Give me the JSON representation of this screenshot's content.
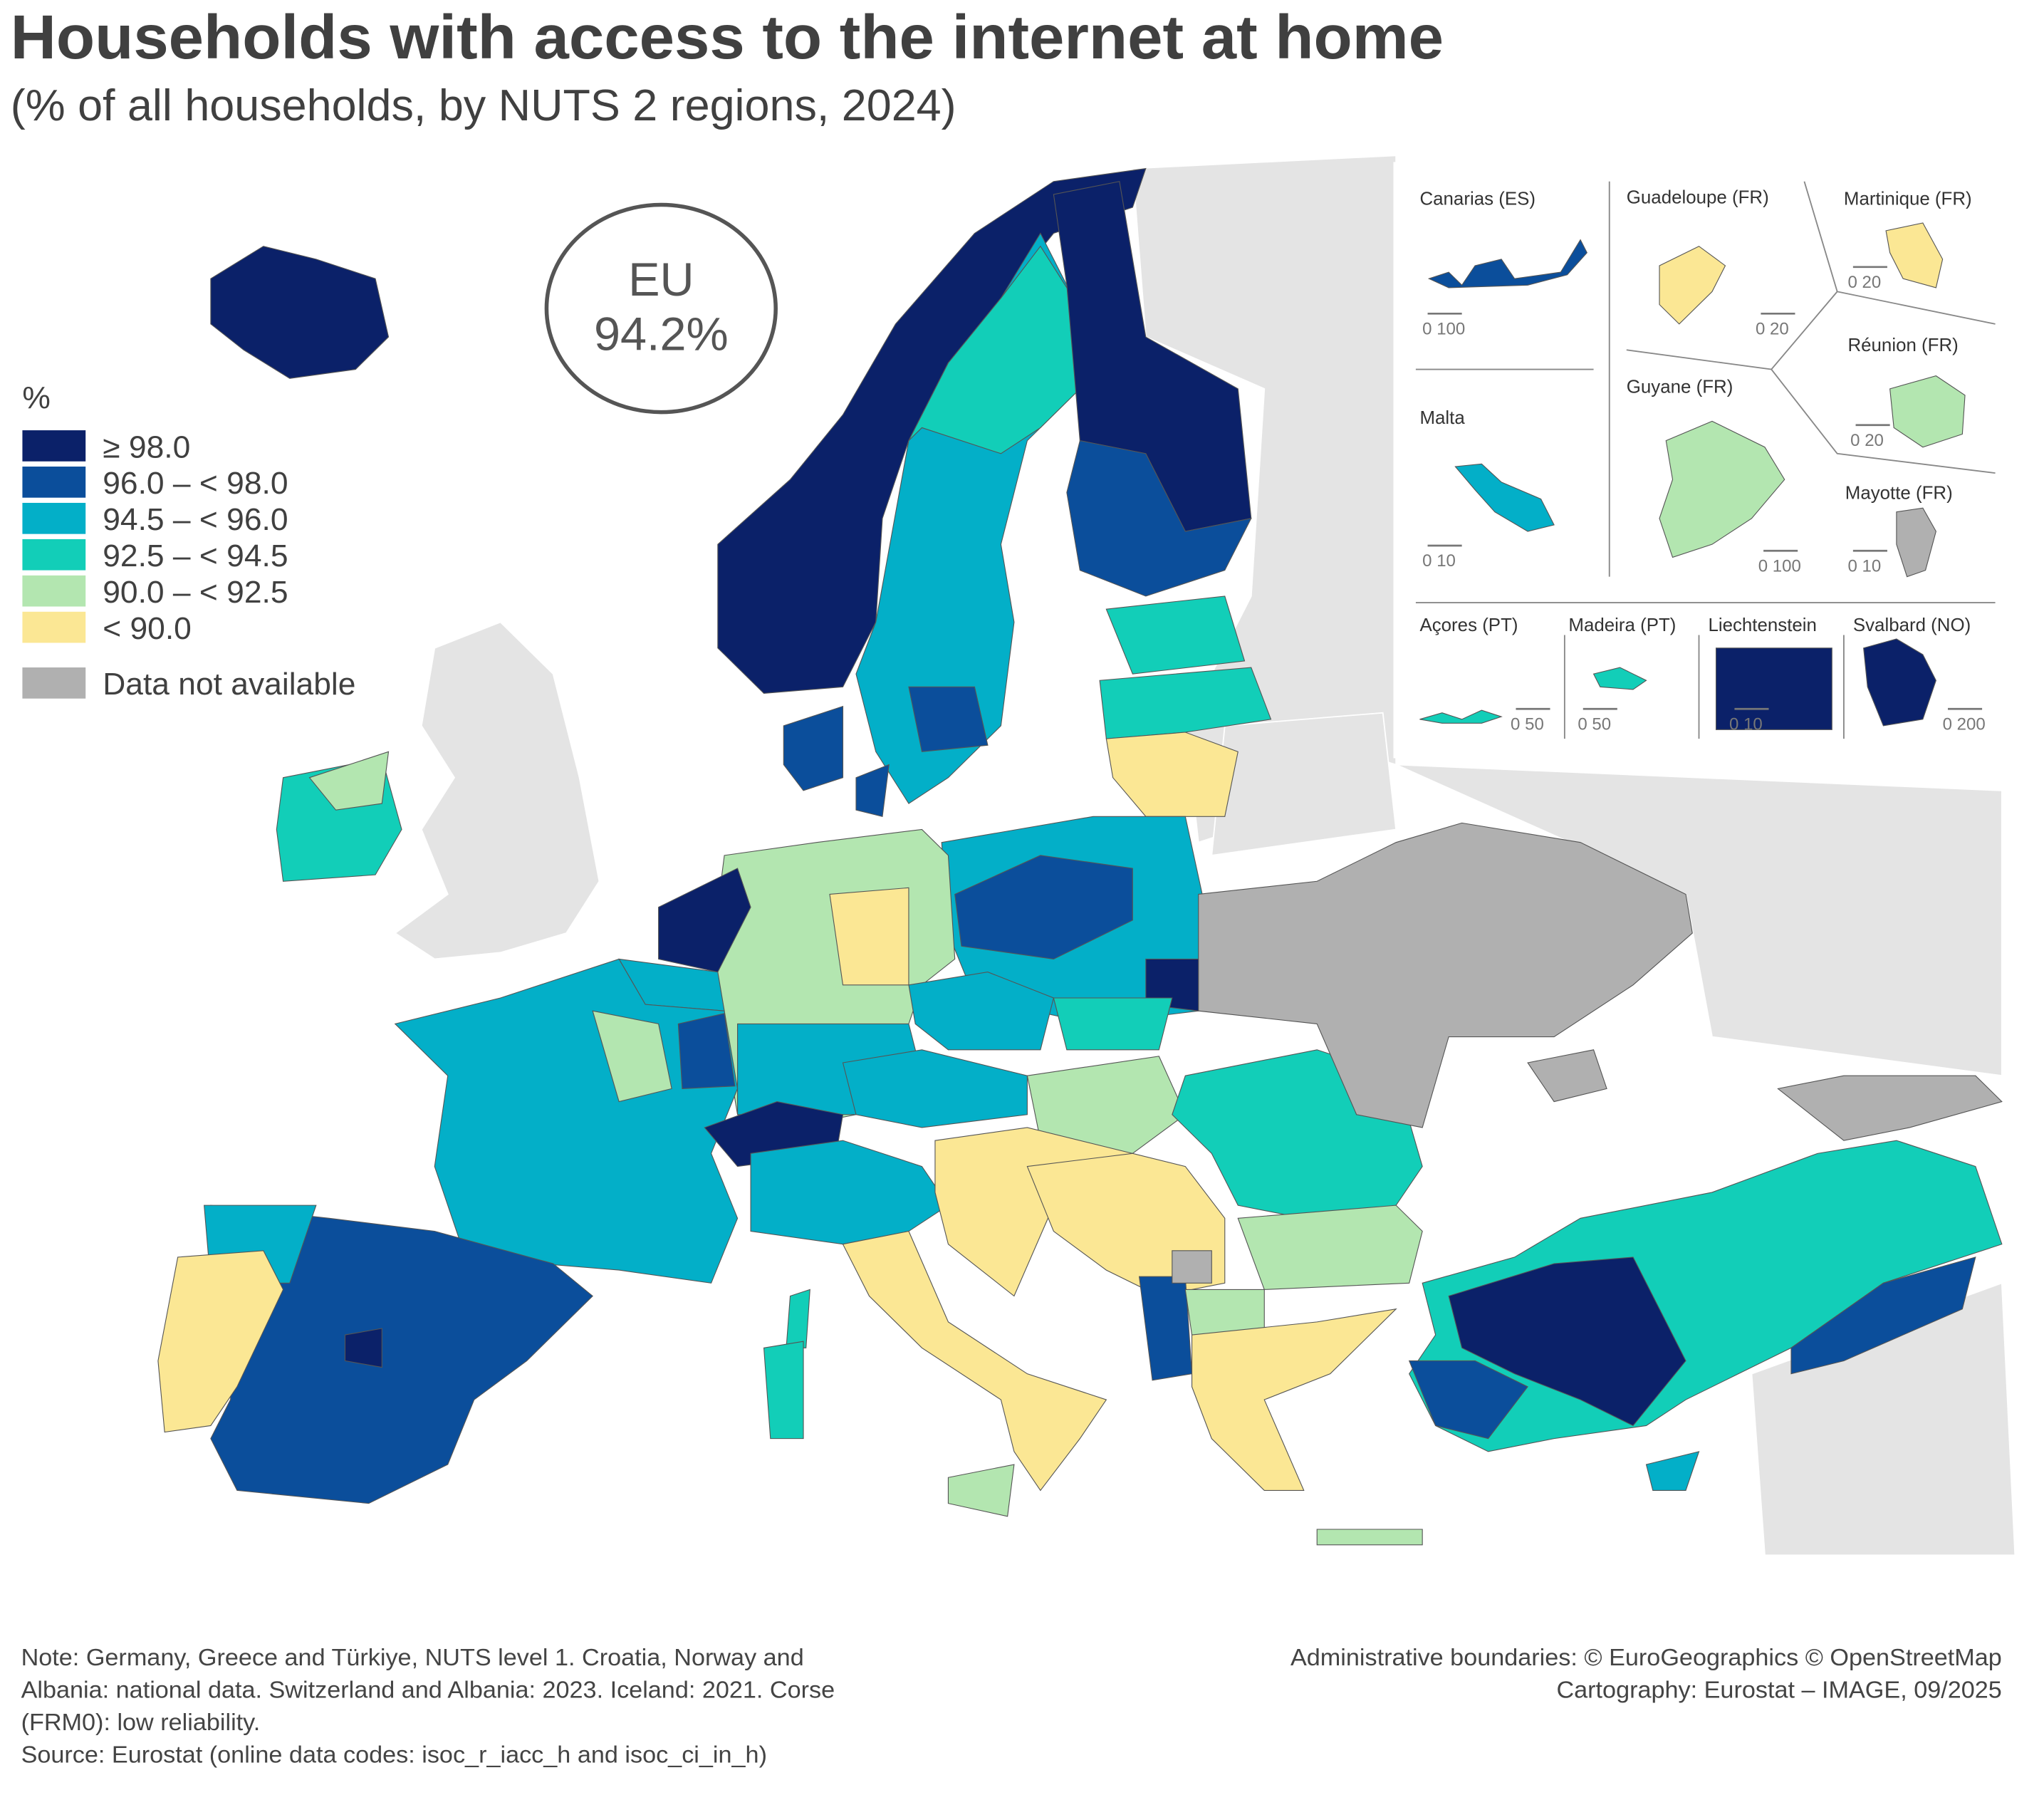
{
  "header": {
    "title": "Households with access to the internet at home",
    "subtitle": "(% of all households, by NUTS 2 regions, 2024)"
  },
  "eu_badge": {
    "label": "EU",
    "value": "94.2%"
  },
  "legend": {
    "title": "%",
    "classes": [
      {
        "label": "≥ 98.0",
        "color": "#0b2169"
      },
      {
        "label": "96.0 – < 98.0",
        "color": "#0b4e9b"
      },
      {
        "label": "94.5 – < 96.0",
        "color": "#03afc8"
      },
      {
        "label": "92.5 – < 94.5",
        "color": "#12ceb8"
      },
      {
        "label": "90.0 – < 92.5",
        "color": "#b3e6b0"
      },
      {
        "label": "< 90.0",
        "color": "#fbe794"
      }
    ],
    "no_data": {
      "label": "Data not available",
      "color": "#b0b0b0"
    }
  },
  "insets": [
    {
      "name": "Canarias (ES)",
      "scale": "0  100"
    },
    {
      "name": "Guadeloupe (FR)",
      "scale": "0  20"
    },
    {
      "name": "Martinique (FR)",
      "scale": "0  20"
    },
    {
      "name": "Réunion (FR)",
      "scale": "0  20"
    },
    {
      "name": "Malta",
      "scale": "0  10"
    },
    {
      "name": "Guyane (FR)",
      "scale": "0  100"
    },
    {
      "name": "Mayotte (FR)",
      "scale": "0 10"
    },
    {
      "name": "Açores (PT)",
      "scale": "0  50"
    },
    {
      "name": "Madeira (PT)",
      "scale": "0    50"
    },
    {
      "name": "Liechtenstein",
      "scale": "0  10"
    },
    {
      "name": "Svalbard (NO)",
      "scale": "0    200"
    }
  ],
  "notes": {
    "lines": [
      "Note: Germany, Greece and Türkiye, NUTS level 1. Croatia, Norway and",
      "Albania: national data. Switzerland and Albania: 2023. Iceland: 2021. Corse",
      "(FRM0): low reliability.",
      "Source: Eurostat (online data codes: isoc_r_iacc_h and isoc_ci_in_h)"
    ]
  },
  "credits": {
    "lines": [
      "Administrative boundaries: © EuroGeographics © OpenStreetMap",
      "Cartography: Eurostat – IMAGE, 09/2025"
    ]
  }
}
